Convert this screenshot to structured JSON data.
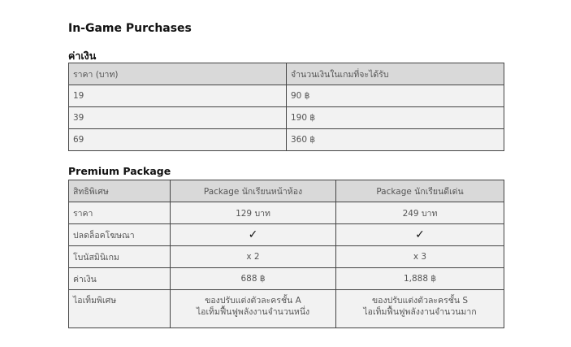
{
  "title": "In-Game Purchases",
  "currency": {
    "heading": "ค่าเงิน",
    "headers": [
      "ราคา (บาท)",
      "จำนวนเงินในเกมที่จะได้รับ"
    ],
    "rows": [
      [
        "19",
        "90 ฿"
      ],
      [
        "39",
        "190 ฿"
      ],
      [
        "69",
        "360 ฿"
      ]
    ]
  },
  "premium": {
    "heading": "Premium Package",
    "headers": [
      "สิทธิพิเศษ",
      "Package นักเรียนหน้าห้อง",
      "Package นักเรียนดีเด่น"
    ],
    "rows": [
      [
        "ราคา",
        "129 บาท",
        "249 บาท"
      ],
      [
        "ปลดล็อคโฆษณา",
        "✓",
        "✓"
      ],
      [
        "โบนัสมินิเกม",
        "x 2",
        "x 3"
      ],
      [
        "ค่าเงิน",
        "688 ฿",
        "1,888 ฿"
      ]
    ],
    "items_row": {
      "label": "ไอเท็มพิเศษ",
      "a": [
        "ของปรับแต่งตัวละครชั้น A",
        "ไอเท็มฟื้นฟูพลังงานจำนวนหนึ่ง"
      ],
      "b": [
        "ของปรับแต่งตัวละครชั้น S",
        "ไอเท็มฟื้นฟูพลังงานจำนวนมาก"
      ]
    }
  }
}
